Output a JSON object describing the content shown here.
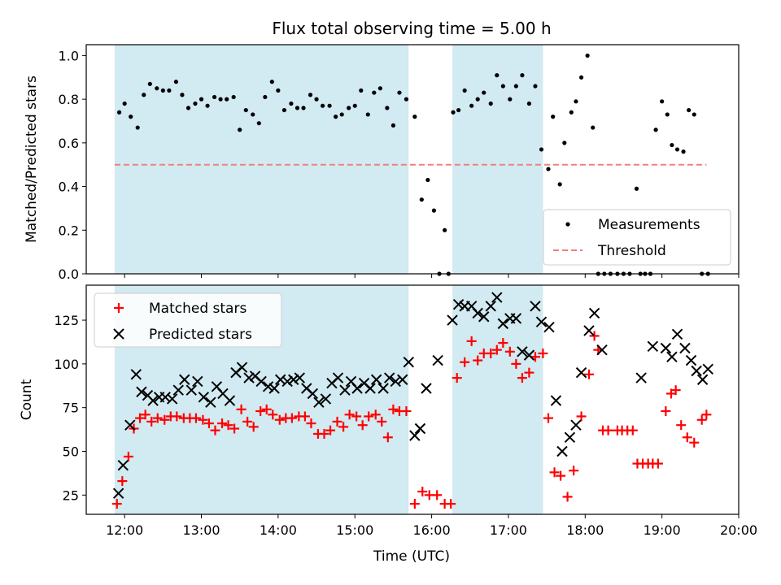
{
  "chart_data": [
    {
      "type": "scatter",
      "title": "Flux total observing time = 5.00 h",
      "ylabel": "Matched/Predicted stars",
      "xlabel": "",
      "xlim": [
        11.5,
        20.0
      ],
      "ylim": [
        0.0,
        1.05
      ],
      "yticks": [
        0.0,
        0.2,
        0.4,
        0.6,
        0.8,
        1.0
      ],
      "ytick_labels": [
        "0.0",
        "0.2",
        "0.4",
        "0.6",
        "0.8",
        "1.0"
      ],
      "shaded_spans": [
        [
          11.87,
          15.7
        ],
        [
          16.27,
          17.45
        ]
      ],
      "shade_color": "#add8e6",
      "threshold": {
        "name": "Threshold",
        "y": 0.5,
        "x": [
          11.87,
          19.58
        ],
        "color": "#f08080"
      },
      "legend": {
        "position": "lower right",
        "entries": [
          "Measurements",
          "Threshold"
        ]
      },
      "series": [
        {
          "name": "Measurements",
          "color": "#000000",
          "x": [
            11.93,
            12.0,
            12.08,
            12.17,
            12.25,
            12.33,
            12.42,
            12.5,
            12.58,
            12.67,
            12.75,
            12.83,
            12.92,
            13.0,
            13.08,
            13.17,
            13.25,
            13.33,
            13.42,
            13.5,
            13.58,
            13.67,
            13.75,
            13.83,
            13.92,
            14.0,
            14.08,
            14.17,
            14.25,
            14.33,
            14.42,
            14.5,
            14.58,
            14.67,
            14.75,
            14.83,
            14.92,
            15.0,
            15.08,
            15.17,
            15.25,
            15.33,
            15.42,
            15.5,
            15.58,
            15.67,
            15.78,
            15.87,
            15.95,
            16.03,
            16.1,
            16.17,
            16.22,
            16.28,
            16.35,
            16.43,
            16.52,
            16.6,
            16.68,
            16.77,
            16.85,
            16.93,
            17.02,
            17.1,
            17.18,
            17.27,
            17.35,
            17.43,
            17.52,
            17.58,
            17.67,
            17.73,
            17.82,
            17.88,
            17.95,
            18.03,
            18.1,
            18.17,
            18.25,
            18.33,
            18.42,
            18.5,
            18.58,
            18.67,
            18.72,
            18.78,
            18.85,
            18.92,
            19.0,
            19.07,
            19.13,
            19.2,
            19.28,
            19.35,
            19.42,
            19.52,
            19.6
          ],
          "y": [
            0.74,
            0.78,
            0.72,
            0.67,
            0.82,
            0.87,
            0.85,
            0.84,
            0.84,
            0.88,
            0.82,
            0.76,
            0.78,
            0.8,
            0.77,
            0.81,
            0.8,
            0.8,
            0.81,
            0.66,
            0.75,
            0.73,
            0.69,
            0.81,
            0.88,
            0.84,
            0.75,
            0.78,
            0.76,
            0.76,
            0.82,
            0.8,
            0.77,
            0.77,
            0.72,
            0.73,
            0.76,
            0.77,
            0.84,
            0.73,
            0.83,
            0.85,
            0.76,
            0.68,
            0.83,
            0.8,
            0.72,
            0.34,
            0.43,
            0.29,
            0.0,
            0.2,
            0.0,
            0.74,
            0.75,
            0.84,
            0.77,
            0.8,
            0.83,
            0.78,
            0.91,
            0.86,
            0.8,
            0.86,
            0.91,
            0.78,
            0.86,
            0.57,
            0.48,
            0.72,
            0.41,
            0.6,
            0.74,
            0.79,
            0.9,
            1.0,
            0.67,
            0.0,
            0.0,
            0.0,
            0.0,
            0.0,
            0.0,
            0.39,
            0.0,
            0.0,
            0.0,
            0.66,
            0.79,
            0.73,
            0.59,
            0.57,
            0.56,
            0.75,
            0.73,
            0.0,
            0.0
          ]
        }
      ]
    },
    {
      "type": "scatter",
      "title": "",
      "xlabel": "Time (UTC)",
      "ylabel": "Count",
      "xlim": [
        11.5,
        20.0
      ],
      "ylim": [
        14,
        145
      ],
      "xticks": [
        12,
        13,
        14,
        15,
        16,
        17,
        18,
        19,
        20
      ],
      "xtick_labels": [
        "12:00",
        "13:00",
        "14:00",
        "15:00",
        "16:00",
        "17:00",
        "18:00",
        "19:00",
        "20:00"
      ],
      "yticks": [
        25,
        50,
        75,
        100,
        125
      ],
      "ytick_labels": [
        "25",
        "50",
        "75",
        "100",
        "125"
      ],
      "shaded_spans": [
        [
          11.87,
          15.7
        ],
        [
          16.27,
          17.45
        ]
      ],
      "legend": {
        "position": "upper left",
        "entries": [
          "Matched stars",
          "Predicted stars"
        ]
      },
      "series": [
        {
          "name": "Matched stars",
          "marker": "plus",
          "color": "#ff0000",
          "x": [
            11.9,
            11.97,
            12.05,
            12.12,
            12.2,
            12.27,
            12.35,
            12.43,
            12.52,
            12.6,
            12.68,
            12.77,
            12.85,
            12.93,
            13.02,
            13.1,
            13.18,
            13.27,
            13.35,
            13.43,
            13.52,
            13.6,
            13.68,
            13.77,
            13.85,
            13.93,
            14.02,
            14.1,
            14.18,
            14.27,
            14.35,
            14.43,
            14.52,
            14.6,
            14.68,
            14.77,
            14.85,
            14.93,
            15.02,
            15.1,
            15.18,
            15.27,
            15.35,
            15.43,
            15.5,
            15.58,
            15.67,
            15.78,
            15.88,
            15.97,
            16.07,
            16.17,
            16.25,
            16.33,
            16.43,
            16.52,
            16.6,
            16.68,
            16.77,
            16.85,
            16.93,
            17.02,
            17.1,
            17.18,
            17.27,
            17.35,
            17.45,
            17.52,
            17.6,
            17.68,
            17.77,
            17.85,
            17.95,
            18.05,
            18.12,
            18.17,
            18.23,
            18.3,
            18.42,
            18.48,
            18.55,
            18.62,
            18.68,
            18.75,
            18.82,
            18.88,
            18.95,
            19.05,
            19.12,
            19.18,
            19.25,
            19.33,
            19.42,
            19.52,
            19.58
          ],
          "y": [
            20,
            33,
            47,
            63,
            69,
            71,
            67,
            69,
            68,
            70,
            70,
            69,
            69,
            69,
            68,
            66,
            62,
            66,
            65,
            63,
            74,
            67,
            64,
            73,
            74,
            71,
            68,
            69,
            69,
            70,
            70,
            66,
            60,
            60,
            62,
            67,
            64,
            71,
            70,
            65,
            70,
            71,
            67,
            58,
            74,
            73,
            73,
            20,
            27,
            25,
            25,
            20,
            20,
            92,
            101,
            113,
            102,
            106,
            106,
            108,
            112,
            107,
            100,
            92,
            95,
            104,
            106,
            69,
            38,
            36,
            24,
            39,
            70,
            94,
            116,
            108,
            62,
            62,
            62,
            62,
            62,
            62,
            43,
            43,
            43,
            43,
            43,
            73,
            83,
            85,
            65,
            58,
            55,
            68,
            71
          ]
        },
        {
          "name": "Predicted stars",
          "marker": "x",
          "color": "#000000",
          "x": [
            11.92,
            11.98,
            12.07,
            12.15,
            12.22,
            12.3,
            12.37,
            12.45,
            12.53,
            12.62,
            12.7,
            12.78,
            12.87,
            12.95,
            13.03,
            13.12,
            13.2,
            13.28,
            13.37,
            13.45,
            13.53,
            13.62,
            13.7,
            13.78,
            13.87,
            13.95,
            14.03,
            14.12,
            14.2,
            14.28,
            14.37,
            14.45,
            14.53,
            14.62,
            14.7,
            14.78,
            14.87,
            14.95,
            15.03,
            15.12,
            15.2,
            15.28,
            15.37,
            15.45,
            15.53,
            15.62,
            15.7,
            15.78,
            15.85,
            15.93,
            16.08,
            16.27,
            16.35,
            16.43,
            16.52,
            16.6,
            16.68,
            16.77,
            16.85,
            16.93,
            17.02,
            17.1,
            17.18,
            17.27,
            17.35,
            17.43,
            17.53,
            17.62,
            17.7,
            17.8,
            17.88,
            17.95,
            18.05,
            18.12,
            18.22,
            18.73,
            18.88,
            19.05,
            19.13,
            19.2,
            19.3,
            19.38,
            19.45,
            19.53,
            19.6
          ],
          "y": [
            26,
            42,
            65,
            94,
            84,
            82,
            79,
            81,
            81,
            80,
            85,
            91,
            85,
            90,
            81,
            78,
            87,
            83,
            79,
            95,
            98,
            92,
            93,
            90,
            87,
            86,
            91,
            90,
            91,
            92,
            86,
            83,
            78,
            80,
            89,
            92,
            85,
            90,
            86,
            89,
            86,
            91,
            86,
            92,
            90,
            91,
            101,
            59,
            63,
            86,
            102,
            125,
            134,
            133,
            133,
            129,
            127,
            133,
            138,
            123,
            126,
            126,
            107,
            105,
            133,
            124,
            121,
            79,
            50,
            58,
            65,
            95,
            119,
            129,
            108,
            92,
            110,
            109,
            104,
            117,
            109,
            102,
            96,
            91,
            97
          ]
        }
      ]
    }
  ]
}
